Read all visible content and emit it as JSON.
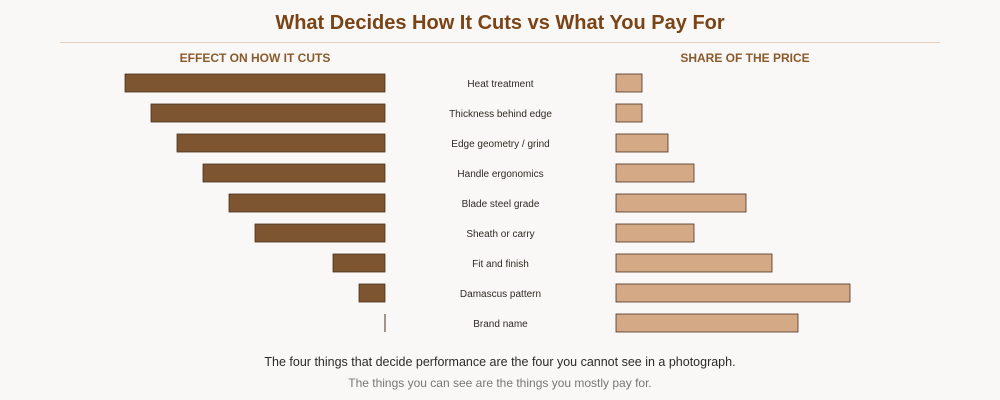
{
  "title": "What Decides How It Cuts vs What You Pay For",
  "chart_data": {
    "type": "bar",
    "categories": [
      "Heat treatment",
      "Thickness behind edge",
      "Edge geometry / grind",
      "Handle ergonomics",
      "Blade steel grade",
      "Sheath or carry",
      "Fit and finish",
      "Damascus pattern",
      "Brand name"
    ],
    "series": [
      {
        "name": "EFFECT ON HOW IT CUTS",
        "values": [
          10,
          9,
          8,
          7,
          6,
          5,
          2,
          1,
          0
        ],
        "color": "#7d5530"
      },
      {
        "name": "SHARE OF THE PRICE",
        "values": [
          1,
          1,
          2,
          3,
          5,
          3,
          6,
          9,
          7
        ],
        "color": "#d4a986"
      }
    ]
  },
  "captions": {
    "line1": "The four things that decide performance are the four you cannot see in a photograph.",
    "line2": "The things you can see are the things you mostly pay for."
  }
}
